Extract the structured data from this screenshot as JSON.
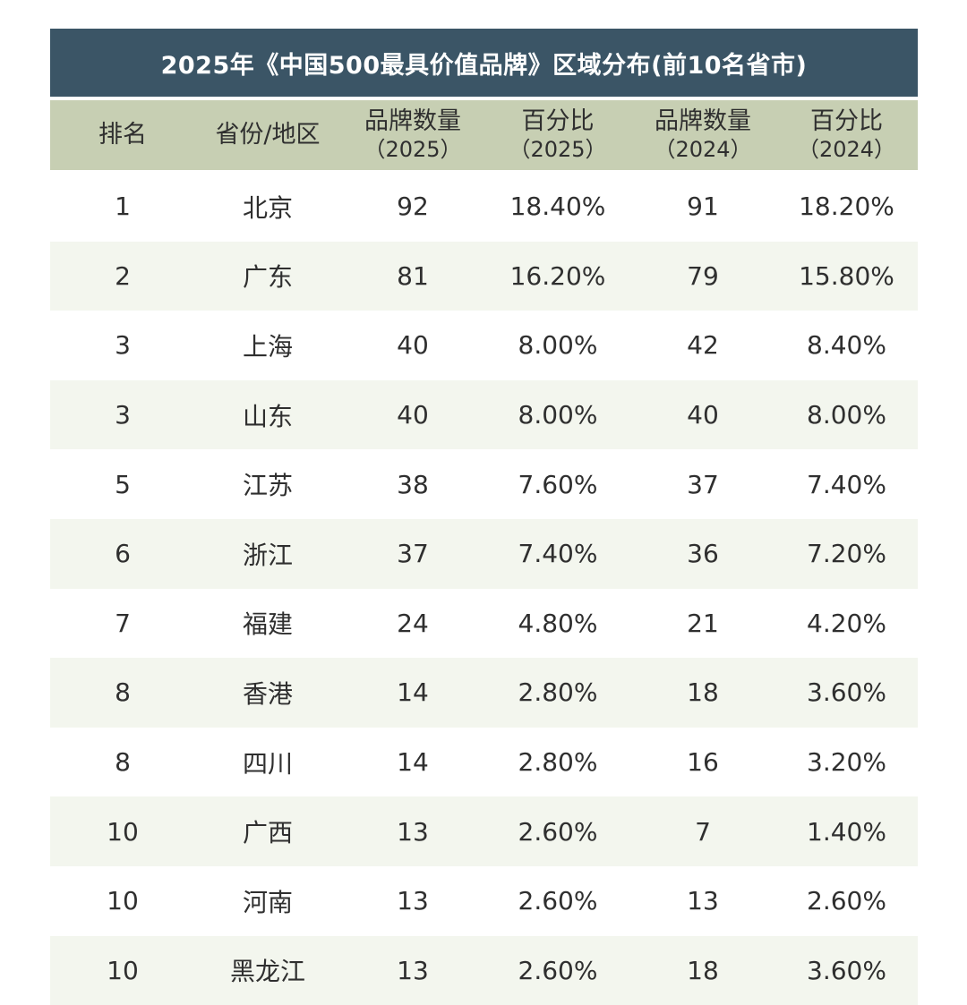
{
  "title": "2025年《中国500最具价值品牌》区域分布(前10名省市)",
  "colors": {
    "title_bg": "#3b5566",
    "header_bg": "#c7cfb3",
    "stripe_bg": "#f3f6ee"
  },
  "headers": [
    {
      "line1": "排名",
      "line2": ""
    },
    {
      "line1": "省份/地区",
      "line2": ""
    },
    {
      "line1": "品牌数量",
      "line2": "（2025）"
    },
    {
      "line1": "百分比",
      "line2": "（2025）"
    },
    {
      "line1": "品牌数量",
      "line2": "（2024）"
    },
    {
      "line1": "百分比",
      "line2": "（2024）"
    }
  ],
  "rows": [
    [
      "1",
      "北京",
      "92",
      "18.40%",
      "91",
      "18.20%"
    ],
    [
      "2",
      "广东",
      "81",
      "16.20%",
      "79",
      "15.80%"
    ],
    [
      "3",
      "上海",
      "40",
      "8.00%",
      "42",
      "8.40%"
    ],
    [
      "3",
      "山东",
      "40",
      "8.00%",
      "40",
      "8.00%"
    ],
    [
      "5",
      "江苏",
      "38",
      "7.60%",
      "37",
      "7.40%"
    ],
    [
      "6",
      "浙江",
      "37",
      "7.40%",
      "36",
      "7.20%"
    ],
    [
      "7",
      "福建",
      "24",
      "4.80%",
      "21",
      "4.20%"
    ],
    [
      "8",
      "香港",
      "14",
      "2.80%",
      "18",
      "3.60%"
    ],
    [
      "8",
      "四川",
      "14",
      "2.80%",
      "16",
      "3.20%"
    ],
    [
      "10",
      "广西",
      "13",
      "2.60%",
      "7",
      "1.40%"
    ],
    [
      "10",
      "河南",
      "13",
      "2.60%",
      "13",
      "2.60%"
    ],
    [
      "10",
      "黑龙江",
      "13",
      "2.60%",
      "18",
      "3.60%"
    ]
  ]
}
